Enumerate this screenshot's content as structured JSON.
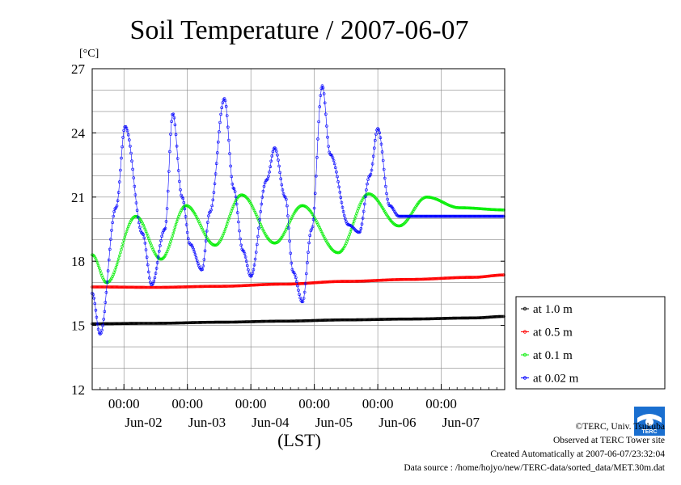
{
  "chart_data": {
    "type": "line",
    "title": "Soil Temperature / 2007-06-07",
    "ylabel": "[°C]",
    "xlabel": "(LST)",
    "ylim": [
      12,
      27
    ],
    "yticks": [
      12,
      15,
      18,
      21,
      24,
      27
    ],
    "x_range": [
      "2007-06-01T12:00",
      "2007-06-07T23:59"
    ],
    "xtick_times": [
      "2007-06-02T00:00",
      "2007-06-03T00:00",
      "2007-06-04T00:00",
      "2007-06-05T00:00",
      "2007-06-06T00:00",
      "2007-06-07T00:00"
    ],
    "xtick_labels": [
      "00:00",
      "00:00",
      "00:00",
      "00:00",
      "00:00",
      "00:00"
    ],
    "xdate_labels": [
      "Jun-02",
      "Jun-03",
      "Jun-04",
      "Jun-05",
      "Jun-06",
      "Jun-07"
    ],
    "grid": true,
    "legend_position": "right-middle",
    "series": [
      {
        "name": "at 1.0 m",
        "color": "#000000",
        "x": [
          "2007-06-01T12:00",
          "2007-06-02T12:00",
          "2007-06-03T12:00",
          "2007-06-04T12:00",
          "2007-06-05T12:00",
          "2007-06-06T12:00",
          "2007-06-07T12:00",
          "2007-06-07T23:59"
        ],
        "values": [
          15.08,
          15.1,
          15.15,
          15.2,
          15.26,
          15.3,
          15.35,
          15.42
        ]
      },
      {
        "name": "at 0.5 m",
        "color": "#ff0000",
        "x": [
          "2007-06-01T12:00",
          "2007-06-02T12:00",
          "2007-06-03T12:00",
          "2007-06-04T12:00",
          "2007-06-05T12:00",
          "2007-06-06T12:00",
          "2007-06-07T12:00",
          "2007-06-07T23:59"
        ],
        "values": [
          16.8,
          16.78,
          16.83,
          16.93,
          17.06,
          17.15,
          17.25,
          17.36
        ]
      },
      {
        "name": "at 0.1 m",
        "color": "#00ee00",
        "x": [
          "2007-06-01T12:00",
          "2007-06-01T17:30",
          "2007-06-02T04:30",
          "2007-06-02T14:00",
          "2007-06-02T23:30",
          "2007-06-03T10:30",
          "2007-06-03T20:30",
          "2007-06-04T09:00",
          "2007-06-04T19:30",
          "2007-06-05T09:00",
          "2007-06-05T20:30",
          "2007-06-06T08:00",
          "2007-06-06T18:30",
          "2007-06-07T07:00",
          "2007-06-07T23:59"
        ],
        "values": [
          18.3,
          17.0,
          20.1,
          18.1,
          20.6,
          18.75,
          21.1,
          18.85,
          20.6,
          18.4,
          21.15,
          19.65,
          21.0,
          20.5,
          20.4
        ]
      },
      {
        "name": "at 0.02 m",
        "color": "#0000ff",
        "x": [
          "2007-06-01T12:00",
          "2007-06-01T15:00",
          "2007-06-01T21:00",
          "2007-06-02T00:30",
          "2007-06-02T07:00",
          "2007-06-02T10:30",
          "2007-06-02T15:30",
          "2007-06-02T18:30",
          "2007-06-02T22:00",
          "2007-06-03T01:00",
          "2007-06-03T05:30",
          "2007-06-03T08:30",
          "2007-06-03T14:00",
          "2007-06-03T17:30",
          "2007-06-03T21:00",
          "2007-06-04T00:00",
          "2007-06-04T06:00",
          "2007-06-04T09:00",
          "2007-06-04T13:00",
          "2007-06-04T16:00",
          "2007-06-04T19:30",
          "2007-06-04T23:00",
          "2007-06-05T03:00",
          "2007-06-05T06:00",
          "2007-06-05T13:00",
          "2007-06-05T17:00",
          "2007-06-05T21:00",
          "2007-06-06T00:00",
          "2007-06-06T04:30",
          "2007-06-06T08:00",
          "2007-06-06T12:00",
          "2007-06-06T15:00",
          "2007-06-06T19:30",
          "2007-06-07T00:00",
          "2007-06-07T02:00",
          "2007-06-07T05:00",
          "2007-06-07T08:00",
          "2007-06-07T12:00",
          "2007-06-07T23:59"
        ],
        "values": [
          16.5,
          14.6,
          20.5,
          24.3,
          19.3,
          16.9,
          19.5,
          24.9,
          21.0,
          18.8,
          17.6,
          20.3,
          25.6,
          21.4,
          18.5,
          17.3,
          21.8,
          23.3,
          21.0,
          17.5,
          16.1,
          19.5,
          26.2,
          23.0,
          19.7,
          19.35,
          22.0,
          24.2,
          20.6,
          20.1,
          20.1,
          20.1,
          20.1,
          20.1,
          20.1,
          20.1,
          20.1,
          20.1,
          20.1
        ]
      }
    ]
  },
  "footer": {
    "copyright": "©TERC, Univ. Tsukuba",
    "site": "Observed at TERC Tower site",
    "created": "Created Automatically at 2007-06-07/23:32:04",
    "source": "Data source : /home/hojyo/new/TERC-data/sorted_data/MET.30m.dat",
    "logo_text": "TERC"
  }
}
